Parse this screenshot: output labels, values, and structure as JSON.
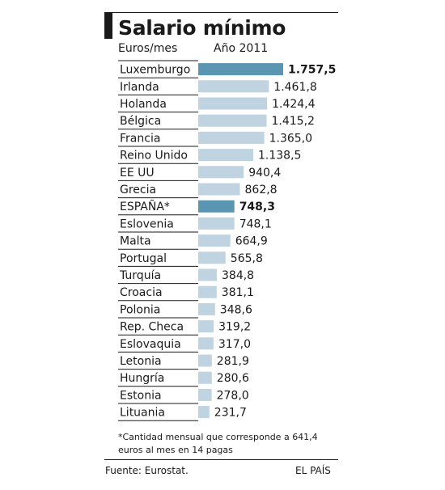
{
  "chart_data": {
    "type": "bar",
    "title": "Salario mínimo",
    "unit_label": "Euros/mes",
    "year_label": "Año 2011",
    "categories": [
      "Luxemburgo",
      "Irlanda",
      "Holanda",
      "Bélgica",
      "Francia",
      "Reino Unido",
      "EE UU",
      "Grecia",
      "ESPAÑA*",
      "Eslovenia",
      "Malta",
      "Portugal",
      "Turquía",
      "Croacia",
      "Polonia",
      "Rep. Checa",
      "Eslovaquia",
      "Letonia",
      "Hungría",
      "Estonia",
      "Lituania"
    ],
    "values": [
      1757.5,
      1461.8,
      1424.4,
      1415.2,
      1365.0,
      1138.5,
      940.4,
      862.8,
      748.3,
      748.1,
      664.9,
      565.8,
      384.8,
      381.1,
      348.6,
      319.2,
      317.0,
      281.9,
      280.6,
      278.0,
      231.7
    ],
    "value_labels": [
      "1.757,5",
      "1.461,8",
      "1.424,4",
      "1.415,2",
      "1.365,0",
      "1.138,5",
      "940,4",
      "862,8",
      "748,3",
      "748,1",
      "664,9",
      "565,8",
      "384,8",
      "381,1",
      "348,6",
      "319,2",
      "317,0",
      "281,9",
      "280,6",
      "278,0",
      "231,7"
    ],
    "highlighted": [
      "Luxemburgo",
      "ESPAÑA*"
    ],
    "orientation": "horizontal",
    "xlim": [
      0,
      1757.5
    ],
    "colors": {
      "bar": "#bfd3e0",
      "highlight": "#5a95b2",
      "rule": "#1a1a1a"
    }
  },
  "note": "*Cantidad mensual que corresponde a 641,4 euros al mes en 14 pagas",
  "source": "Fuente: Eurostat.",
  "credit": "EL PAÍS"
}
